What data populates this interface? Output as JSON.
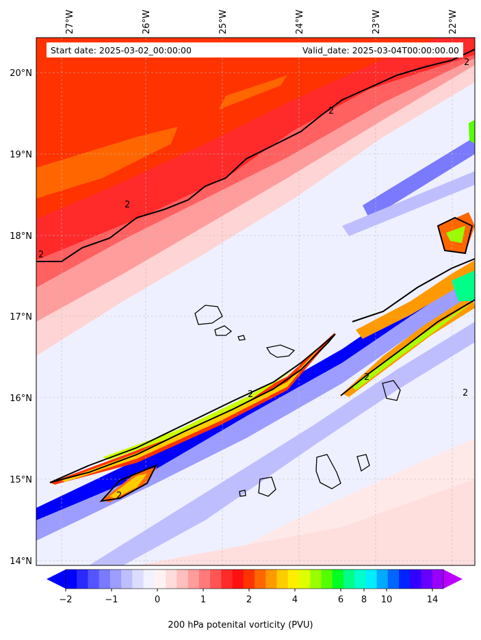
{
  "header": {
    "start_date": "Start date: 2025-03-02_00:00:00",
    "valid_date": "Valid_date: 2025-03-04T00:00:00.00"
  },
  "longitude_labels": [
    "27°W",
    "26°W",
    "25°W",
    "24°W",
    "23°W",
    "22°W"
  ],
  "latitude_labels": [
    "20°N",
    "19°N",
    "18°N",
    "17°N",
    "16°N",
    "15°N",
    "14°N"
  ],
  "contour_label": "2",
  "colorbar": {
    "ticks": [
      "−2",
      "−1",
      "0",
      "1",
      "2",
      "4",
      "6",
      "8",
      "10",
      "14"
    ],
    "title": "200 hPa potenital vorticity (PVU)",
    "colors": [
      "#0000ff",
      "#2a2aff",
      "#5555ff",
      "#7a7aff",
      "#9d9dff",
      "#bebeff",
      "#dcdcff",
      "#f2f2ff",
      "#fff2f2",
      "#ffdcdc",
      "#ffbebe",
      "#ff9d9d",
      "#ff7a7a",
      "#ff5555",
      "#ff2a2a",
      "#ff1010",
      "#ff3300",
      "#ff6600",
      "#ff9900",
      "#ffcc00",
      "#ffee00",
      "#ddff00",
      "#99ff00",
      "#55ff00",
      "#00ff22",
      "#00ff88",
      "#00ffcc",
      "#00eeff",
      "#00aaff",
      "#0066ff",
      "#0022ff",
      "#3300ff",
      "#6600ff",
      "#9900ff"
    ],
    "arrow_low": "#0000ff",
    "arrow_high": "#bb00ff"
  }
}
